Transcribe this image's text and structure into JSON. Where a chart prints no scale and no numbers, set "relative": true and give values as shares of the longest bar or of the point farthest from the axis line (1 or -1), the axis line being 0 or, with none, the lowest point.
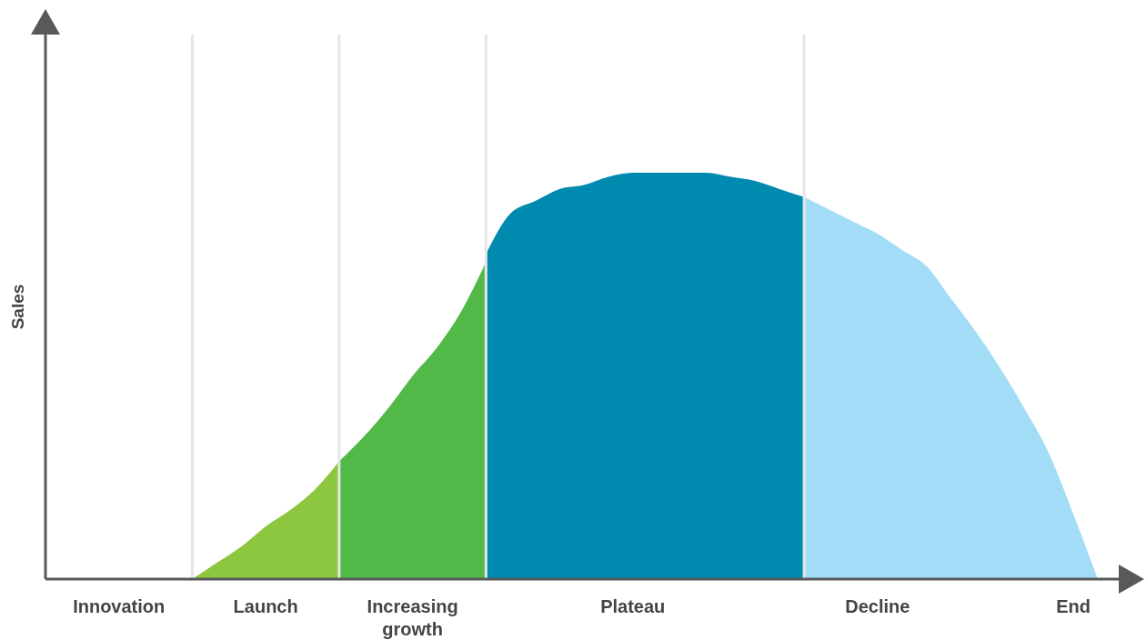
{
  "chart_data": {
    "type": "area",
    "relative": true,
    "ylabel": "Sales",
    "categories": [
      null,
      null,
      null,
      "Innovation",
      null,
      null,
      null,
      null,
      null,
      "Launch",
      null,
      null,
      null,
      null,
      null,
      "Increasing growth",
      null,
      null,
      null,
      null,
      null,
      null,
      null,
      null,
      "Plateau",
      null,
      null,
      null,
      null,
      null,
      null,
      null,
      null,
      null,
      "Decline",
      null,
      null,
      null,
      null,
      null,
      null,
      null,
      "End",
      null
    ],
    "series": [
      {
        "color": "#8dc63f",
        "values": [
          null,
          null,
          null,
          null,
          null,
          null,
          0,
          0.04,
          0.08,
          0.13,
          0.17,
          0.22,
          0.29,
          null,
          null,
          null,
          null,
          null,
          null,
          null,
          null,
          null,
          null,
          null,
          null,
          null,
          null,
          null,
          null,
          null,
          null,
          null,
          null,
          null,
          null,
          null,
          null,
          null,
          null,
          null,
          null,
          null,
          null,
          null
        ]
      },
      {
        "color": "#52b848",
        "values": [
          null,
          null,
          null,
          null,
          null,
          null,
          null,
          null,
          null,
          null,
          null,
          null,
          0.29,
          0.35,
          0.42,
          0.5,
          0.57,
          0.66,
          0.78,
          null,
          null,
          null,
          null,
          null,
          null,
          null,
          null,
          null,
          null,
          null,
          null,
          null,
          null,
          null,
          null,
          null,
          null,
          null,
          null,
          null,
          null,
          null,
          null,
          null
        ]
      },
      {
        "color": "#018aaf",
        "values": [
          null,
          null,
          null,
          null,
          null,
          null,
          null,
          null,
          null,
          null,
          null,
          null,
          null,
          null,
          null,
          null,
          null,
          null,
          0.8,
          0.9,
          0.93,
          0.96,
          0.97,
          0.99,
          1,
          1,
          1,
          1,
          0.99,
          0.98,
          0.96,
          0.94,
          null,
          null,
          null,
          null,
          null,
          null,
          null,
          null,
          null,
          null,
          null,
          null
        ]
      },
      {
        "color": "#a3dcf7",
        "values": [
          null,
          null,
          null,
          null,
          null,
          null,
          null,
          null,
          null,
          null,
          null,
          null,
          null,
          null,
          null,
          null,
          null,
          null,
          null,
          null,
          null,
          null,
          null,
          null,
          null,
          null,
          null,
          null,
          null,
          null,
          null,
          0.94,
          0.91,
          0.88,
          0.85,
          0.81,
          0.77,
          0.69,
          0.61,
          0.52,
          0.42,
          0.31,
          0.16,
          0
        ]
      }
    ],
    "grid": "x"
  }
}
